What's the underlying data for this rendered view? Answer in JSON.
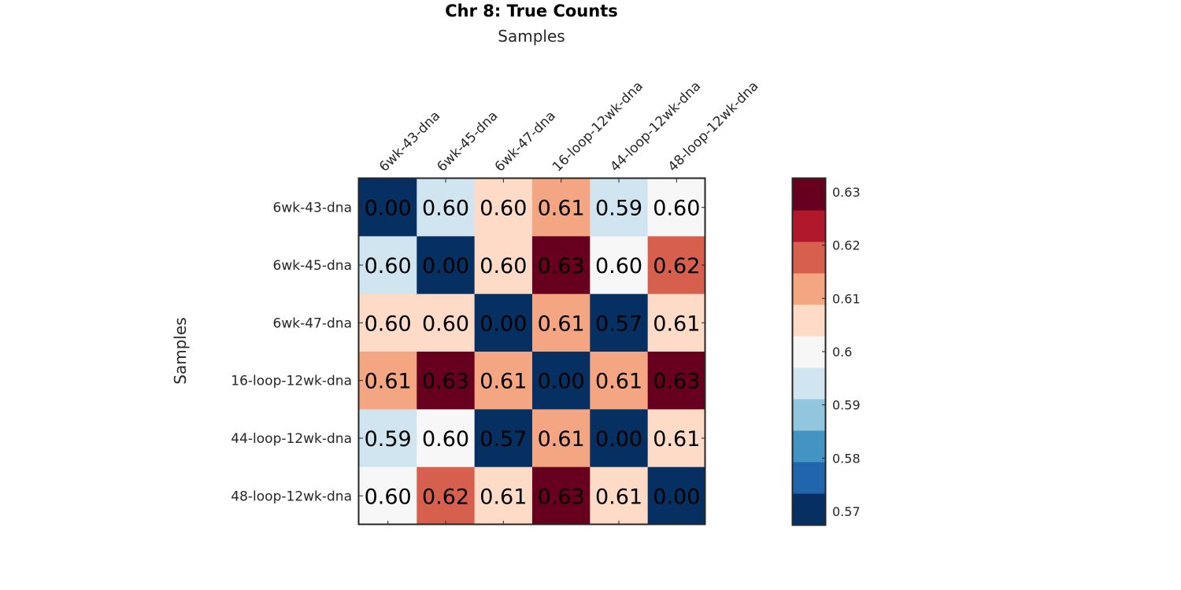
{
  "chart_data": {
    "type": "heatmap",
    "title": "Chr 8: True Counts",
    "xlabel": "Samples",
    "ylabel": "Samples",
    "xlabel_position": "top",
    "x_categories": [
      "6wk-43-dna",
      "6wk-45-dna",
      "6wk-47-dna",
      "16-loop-12wk-dna",
      "44-loop-12wk-dna",
      "48-loop-12wk-dna"
    ],
    "y_categories": [
      "6wk-43-dna",
      "6wk-45-dna",
      "6wk-47-dna",
      "16-loop-12wk-dna",
      "44-loop-12wk-dna",
      "48-loop-12wk-dna"
    ],
    "values": [
      [
        0.0,
        0.6,
        0.6,
        0.61,
        0.59,
        0.6
      ],
      [
        0.6,
        0.0,
        0.6,
        0.63,
        0.6,
        0.62
      ],
      [
        0.6,
        0.6,
        0.0,
        0.61,
        0.57,
        0.61
      ],
      [
        0.61,
        0.63,
        0.61,
        0.0,
        0.61,
        0.63
      ],
      [
        0.59,
        0.6,
        0.57,
        0.61,
        0.0,
        0.61
      ],
      [
        0.6,
        0.62,
        0.61,
        0.63,
        0.61,
        0.0
      ]
    ],
    "value_labels": [
      [
        "0.00",
        "0.60",
        "0.60",
        "0.61",
        "0.59",
        "0.60"
      ],
      [
        "0.60",
        "0.00",
        "0.60",
        "0.63",
        "0.60",
        "0.62"
      ],
      [
        "0.60",
        "0.60",
        "0.00",
        "0.61",
        "0.57",
        "0.61"
      ],
      [
        "0.61",
        "0.63",
        "0.61",
        "0.00",
        "0.61",
        "0.63"
      ],
      [
        "0.59",
        "0.60",
        "0.57",
        "0.61",
        "0.00",
        "0.61"
      ],
      [
        "0.60",
        "0.62",
        "0.61",
        "0.63",
        "0.61",
        "0.00"
      ]
    ],
    "cell_colors": [
      [
        "#053061",
        "#d1e5f0",
        "#fddbc7",
        "#f4a582",
        "#d1e5f0",
        "#f7f7f7"
      ],
      [
        "#d1e5f0",
        "#053061",
        "#fddbc7",
        "#67001f",
        "#f7f7f7",
        "#d6604d"
      ],
      [
        "#fddbc7",
        "#fddbc7",
        "#053061",
        "#f4a582",
        "#053061",
        "#fddbc7"
      ],
      [
        "#f4a582",
        "#67001f",
        "#f4a582",
        "#053061",
        "#f4a582",
        "#67001f"
      ],
      [
        "#d1e5f0",
        "#f7f7f7",
        "#053061",
        "#f4a582",
        "#053061",
        "#fddbc7"
      ],
      [
        "#f7f7f7",
        "#d6604d",
        "#fddbc7",
        "#67001f",
        "#fddbc7",
        "#053061"
      ]
    ],
    "colorbar": {
      "range": [
        0.5675,
        0.6325
      ],
      "ticks": [
        0.57,
        0.58,
        0.59,
        0.6,
        0.61,
        0.62,
        0.63
      ],
      "tick_labels": [
        "0.57",
        "0.58",
        "0.59",
        "0.6",
        "0.61",
        "0.62",
        "0.63"
      ],
      "colors_low_to_high": [
        "#053061",
        "#2166ac",
        "#4393c3",
        "#92c5de",
        "#d1e5f0",
        "#f7f7f7",
        "#fddbc7",
        "#f4a582",
        "#d6604d",
        "#b2182b",
        "#67001f"
      ],
      "placement": "right"
    },
    "grid": false
  }
}
